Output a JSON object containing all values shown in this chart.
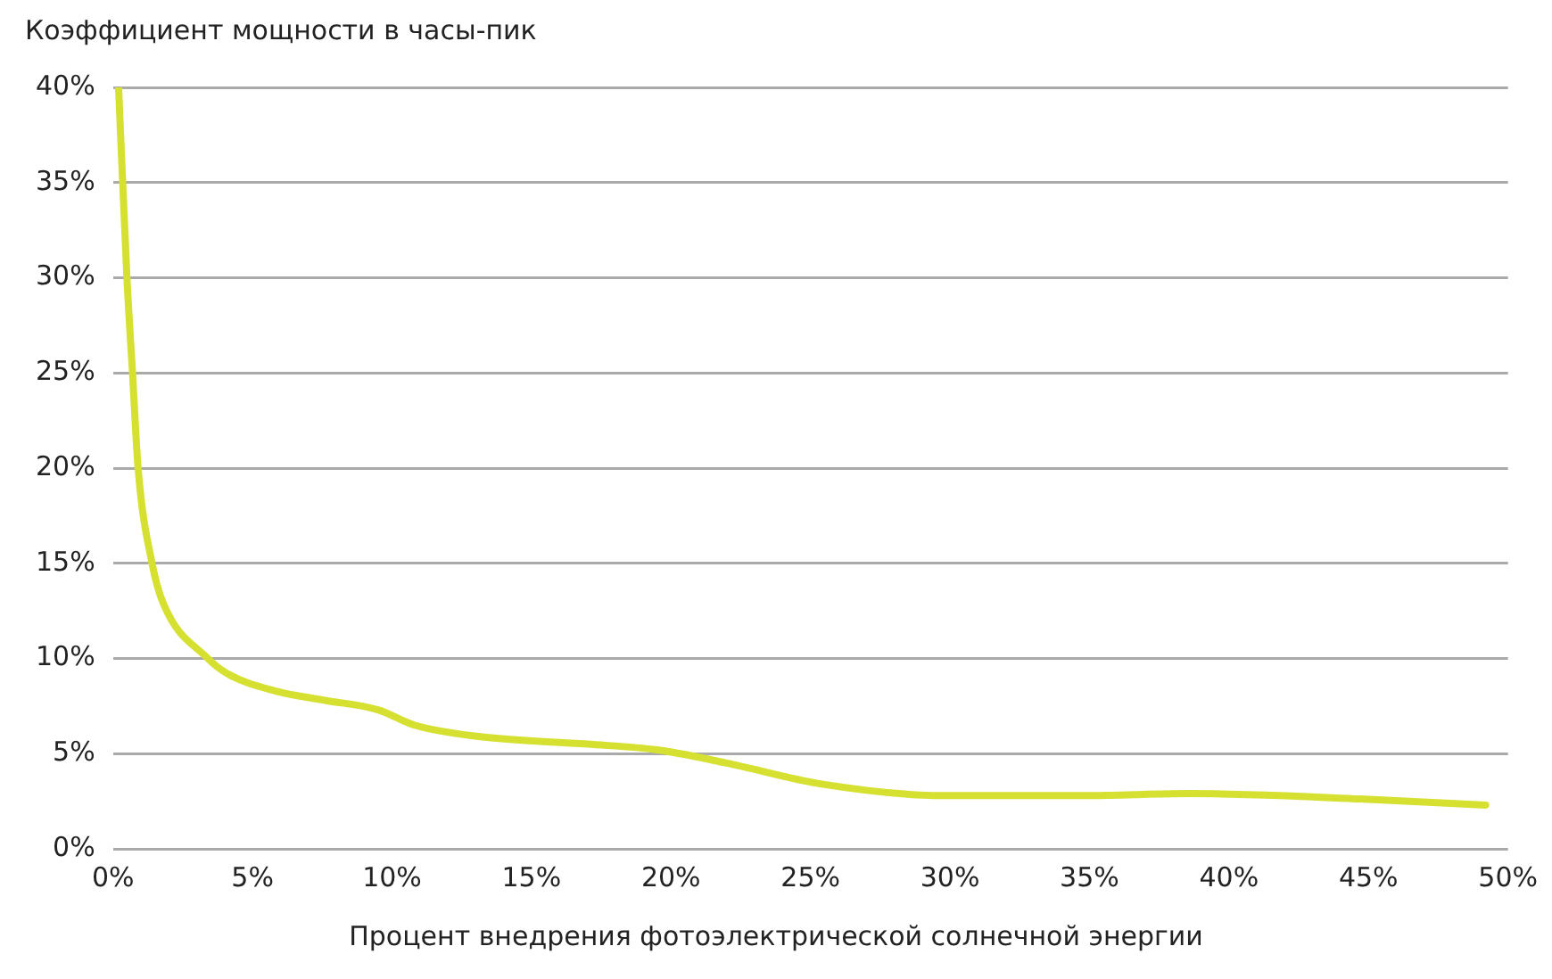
{
  "chart_data": {
    "type": "line",
    "ylabel": "Коэффициент мощности в часы-пик",
    "xlabel": "Процент внедрения фотоэлектрической солнечной энергии",
    "x": [
      0.2,
      0.5,
      0.7,
      0.9,
      1.4,
      1.8,
      3.4,
      4.1,
      5.8,
      7.6,
      9.5,
      10.8,
      13.1,
      17,
      19.5,
      22,
      25.4,
      29.7,
      35,
      38.5,
      45,
      49.2
    ],
    "series": [
      {
        "color": "#d6e030",
        "values": [
          40,
          30,
          25,
          20,
          15,
          12.9,
          10,
          9.2,
          8.3,
          7.8,
          7.3,
          6.5,
          5.9,
          5.5,
          5.2,
          4.5,
          3.4,
          2.8,
          2.8,
          2.9,
          2.6,
          2.3
        ]
      }
    ],
    "xlim": [
      0,
      50
    ],
    "xticks": [
      {
        "value": 0,
        "label": "0%"
      },
      {
        "value": 5,
        "label": "5%"
      },
      {
        "value": 10,
        "label": "10%"
      },
      {
        "value": 15,
        "label": "15%"
      },
      {
        "value": 20,
        "label": "20%"
      },
      {
        "value": 25,
        "label": "25%"
      },
      {
        "value": 30,
        "label": "30%"
      },
      {
        "value": 35,
        "label": "35%"
      },
      {
        "value": 40,
        "label": "40%"
      },
      {
        "value": 45,
        "label": "45%"
      },
      {
        "value": 50,
        "label": "50%"
      }
    ],
    "ylim": [
      0,
      40
    ],
    "yticks": [
      {
        "value": 0,
        "label": "0%"
      },
      {
        "value": 5,
        "label": "5%"
      },
      {
        "value": 10,
        "label": "10%"
      },
      {
        "value": 15,
        "label": "15%"
      },
      {
        "value": 20,
        "label": "20%"
      },
      {
        "value": 25,
        "label": "25%"
      },
      {
        "value": 30,
        "label": "30%"
      },
      {
        "value": 35,
        "label": "35%"
      },
      {
        "value": 40,
        "label": "40%"
      }
    ],
    "grid": "y",
    "legend": false,
    "marker": "none",
    "line_style": "solid"
  }
}
